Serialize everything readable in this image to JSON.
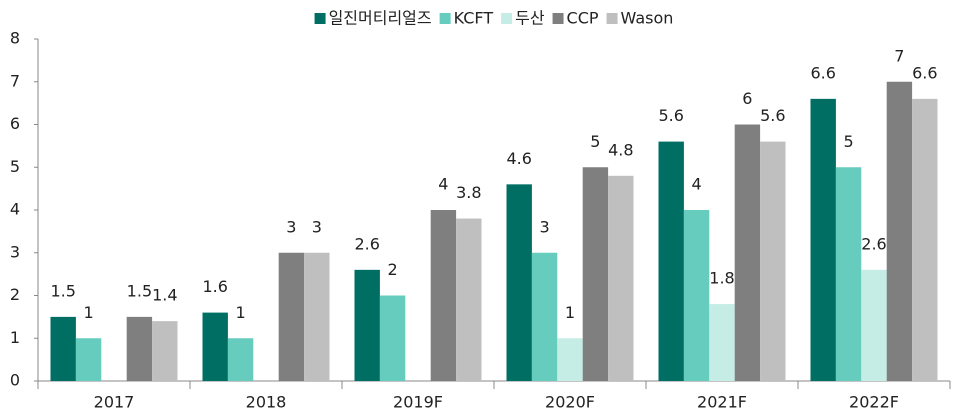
{
  "chart_data": {
    "type": "bar",
    "categories": [
      "2017",
      "2018",
      "2019F",
      "2020F",
      "2021F",
      "2022F"
    ],
    "series": [
      {
        "name": "일진머티리얼즈",
        "color": "#006e63",
        "values": [
          1.5,
          1.6,
          2.6,
          4.6,
          5.6,
          6.6
        ]
      },
      {
        "name": "KCFT",
        "color": "#66ccbe",
        "values": [
          1,
          1,
          2,
          3,
          4,
          5
        ]
      },
      {
        "name": "두산",
        "color": "#c5ede6",
        "values": [
          null,
          null,
          null,
          1,
          1.8,
          2.6
        ]
      },
      {
        "name": "CCP",
        "color": "#7f7f7f",
        "values": [
          1.5,
          3,
          4,
          5,
          6,
          7
        ]
      },
      {
        "name": "Wason",
        "color": "#bfbfbf",
        "values": [
          1.4,
          3,
          3.8,
          4.8,
          5.6,
          6.6
        ]
      }
    ],
    "ylim": [
      0,
      8
    ],
    "yticks": [
      0,
      1,
      2,
      3,
      4,
      5,
      6,
      7,
      8
    ],
    "legend": "top"
  }
}
